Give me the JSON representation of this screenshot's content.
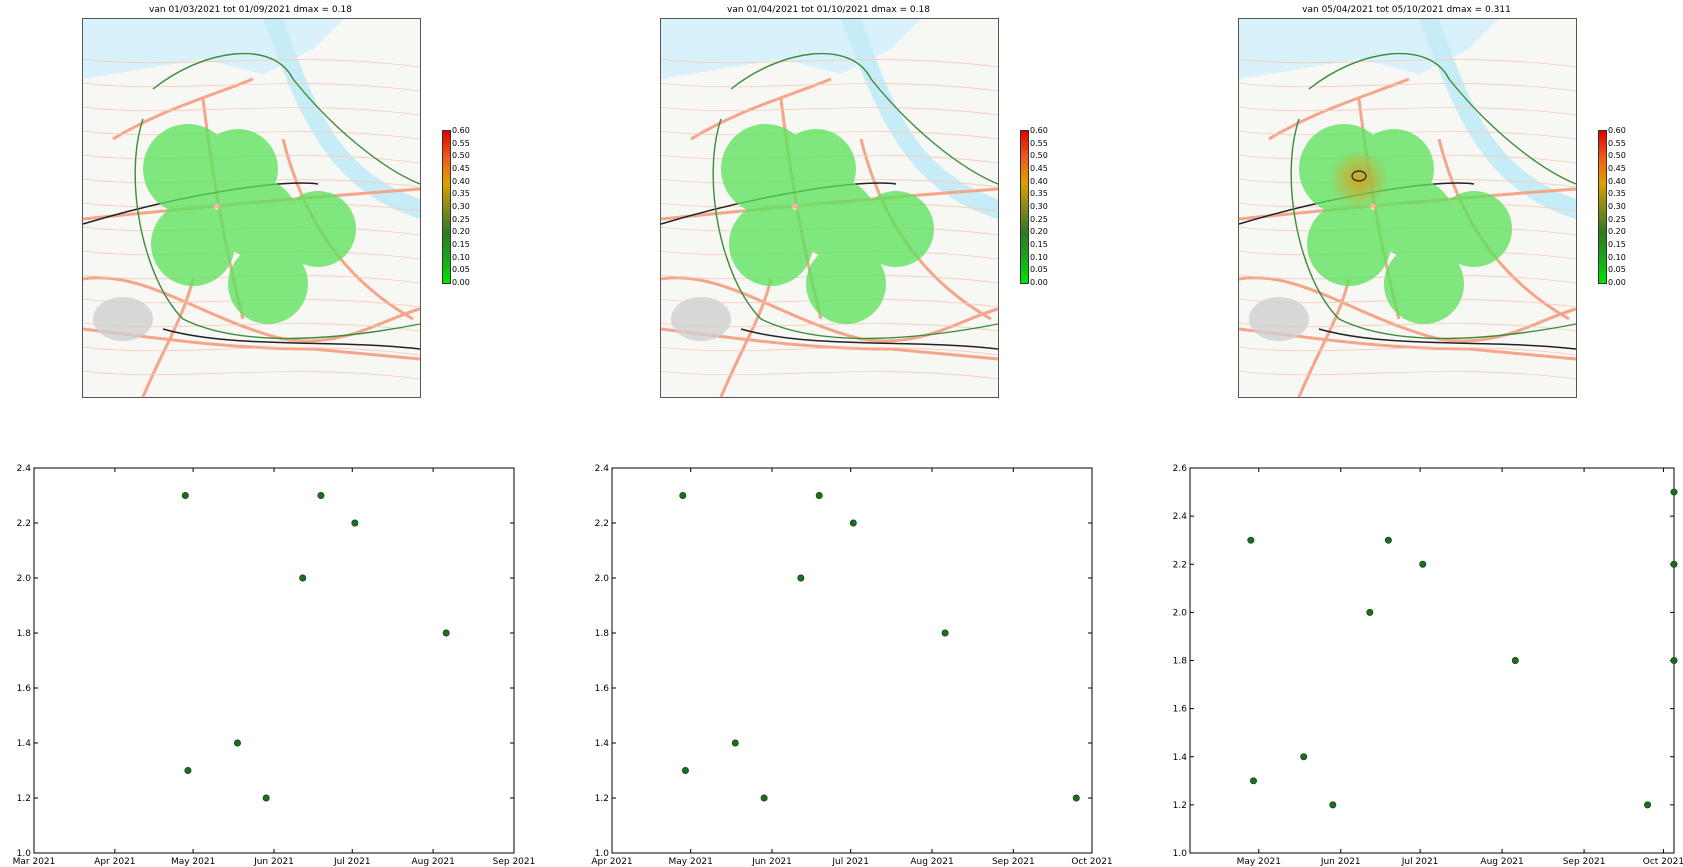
{
  "maps": [
    {
      "title": "van 01/03/2021 tot 01/09/2021 dmax = 0.18",
      "hotspot": false
    },
    {
      "title": "van 01/04/2021 tot 01/10/2021 dmax = 0.18",
      "hotspot": false
    },
    {
      "title": "van 05/04/2021 tot 05/10/2021 dmax = 0.311",
      "hotspot": true
    }
  ],
  "colorbar": {
    "ticks": [
      "0.60",
      "0.55",
      "0.50",
      "0.45",
      "0.40",
      "0.35",
      "0.30",
      "0.25",
      "0.20",
      "0.15",
      "0.10",
      "0.05",
      "0.00"
    ],
    "colors": [
      "#00e600",
      "#2d7a22",
      "#e0a000",
      "#e00000"
    ]
  },
  "chart_data": [
    {
      "type": "scatter",
      "title": "",
      "xlabel": "",
      "ylabel": "",
      "xlim": [
        "2021-03-01",
        "2021-09-01"
      ],
      "ylim": [
        1.0,
        2.4
      ],
      "xticks": [
        {
          "date": "2021-03-01",
          "label": "Mar 2021"
        },
        {
          "date": "2021-04-01",
          "label": "Apr 2021"
        },
        {
          "date": "2021-05-01",
          "label": "May 2021"
        },
        {
          "date": "2021-06-01",
          "label": "Jun 2021"
        },
        {
          "date": "2021-07-01",
          "label": "Jul 2021"
        },
        {
          "date": "2021-08-01",
          "label": "Aug 2021"
        },
        {
          "date": "2021-09-01",
          "label": "Sep 2021"
        }
      ],
      "yticks": [
        1.0,
        1.2,
        1.4,
        1.6,
        1.8,
        2.0,
        2.2,
        2.4
      ],
      "point_color": "#1f6b1f",
      "points": [
        {
          "x": "2021-04-28",
          "y": 2.3
        },
        {
          "x": "2021-04-29",
          "y": 1.3
        },
        {
          "x": "2021-05-18",
          "y": 1.4
        },
        {
          "x": "2021-05-29",
          "y": 1.2
        },
        {
          "x": "2021-06-12",
          "y": 2.0
        },
        {
          "x": "2021-06-19",
          "y": 2.3
        },
        {
          "x": "2021-07-02",
          "y": 2.2
        },
        {
          "x": "2021-08-06",
          "y": 1.8
        }
      ]
    },
    {
      "type": "scatter",
      "title": "",
      "xlabel": "",
      "ylabel": "",
      "xlim": [
        "2021-04-01",
        "2021-10-01"
      ],
      "ylim": [
        1.0,
        2.4
      ],
      "xticks": [
        {
          "date": "2021-04-01",
          "label": "Apr 2021"
        },
        {
          "date": "2021-05-01",
          "label": "May 2021"
        },
        {
          "date": "2021-06-01",
          "label": "Jun 2021"
        },
        {
          "date": "2021-07-01",
          "label": "Jul 2021"
        },
        {
          "date": "2021-08-01",
          "label": "Aug 2021"
        },
        {
          "date": "2021-09-01",
          "label": "Sep 2021"
        },
        {
          "date": "2021-10-01",
          "label": "Oct 2021"
        }
      ],
      "yticks": [
        1.0,
        1.2,
        1.4,
        1.6,
        1.8,
        2.0,
        2.2,
        2.4
      ],
      "point_color": "#1f6b1f",
      "points": [
        {
          "x": "2021-04-28",
          "y": 2.3
        },
        {
          "x": "2021-04-29",
          "y": 1.3
        },
        {
          "x": "2021-05-18",
          "y": 1.4
        },
        {
          "x": "2021-05-29",
          "y": 1.2
        },
        {
          "x": "2021-06-12",
          "y": 2.0
        },
        {
          "x": "2021-06-19",
          "y": 2.3
        },
        {
          "x": "2021-07-02",
          "y": 2.2
        },
        {
          "x": "2021-08-06",
          "y": 1.8
        },
        {
          "x": "2021-09-25",
          "y": 1.2
        }
      ]
    },
    {
      "type": "scatter",
      "title": "",
      "xlabel": "",
      "ylabel": "",
      "xlim": [
        "2021-04-05",
        "2021-10-05"
      ],
      "ylim": [
        1.0,
        2.6
      ],
      "xticks": [
        {
          "date": "2021-05-01",
          "label": "May 2021"
        },
        {
          "date": "2021-06-01",
          "label": "Jun 2021"
        },
        {
          "date": "2021-07-01",
          "label": "Jul 2021"
        },
        {
          "date": "2021-08-01",
          "label": "Aug 2021"
        },
        {
          "date": "2021-09-01",
          "label": "Sep 2021"
        },
        {
          "date": "2021-10-01",
          "label": "Oct 2021"
        }
      ],
      "yticks": [
        1.0,
        1.2,
        1.4,
        1.6,
        1.8,
        2.0,
        2.2,
        2.4,
        2.6
      ],
      "point_color": "#1f6b1f",
      "points": [
        {
          "x": "2021-04-28",
          "y": 2.3
        },
        {
          "x": "2021-04-29",
          "y": 1.3
        },
        {
          "x": "2021-05-18",
          "y": 1.4
        },
        {
          "x": "2021-05-29",
          "y": 1.2
        },
        {
          "x": "2021-06-12",
          "y": 2.0
        },
        {
          "x": "2021-06-19",
          "y": 2.3
        },
        {
          "x": "2021-07-02",
          "y": 2.2
        },
        {
          "x": "2021-08-06",
          "y": 1.8
        },
        {
          "x": "2021-09-25",
          "y": 1.2
        },
        {
          "x": "2021-10-05",
          "y": 2.5
        },
        {
          "x": "2021-10-05",
          "y": 2.2
        },
        {
          "x": "2021-10-05",
          "y": 1.8
        }
      ]
    }
  ]
}
